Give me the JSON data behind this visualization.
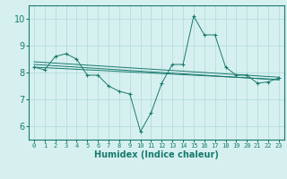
{
  "xlabel": "Humidex (Indice chaleur)",
  "ylabel": "",
  "x_values": [
    0,
    1,
    2,
    3,
    4,
    5,
    6,
    7,
    8,
    9,
    10,
    11,
    12,
    13,
    14,
    15,
    16,
    17,
    18,
    19,
    20,
    21,
    22,
    23
  ],
  "main_line": [
    8.2,
    8.1,
    8.6,
    8.7,
    8.5,
    7.9,
    7.9,
    7.5,
    7.3,
    7.2,
    5.8,
    6.5,
    7.6,
    8.3,
    8.3,
    10.1,
    9.4,
    9.4,
    8.2,
    7.9,
    7.9,
    7.6,
    7.65,
    7.8
  ],
  "regression_lines": [
    [
      8.4,
      8.375,
      8.35,
      8.325,
      8.3,
      8.275,
      8.25,
      8.225,
      8.2,
      8.175,
      8.15,
      8.125,
      8.1,
      8.075,
      8.05,
      8.025,
      8.0,
      7.975,
      7.95,
      7.925,
      7.9,
      7.875,
      7.85,
      7.825
    ],
    [
      8.3,
      8.275,
      8.25,
      8.225,
      8.2,
      8.175,
      8.15,
      8.125,
      8.1,
      8.075,
      8.05,
      8.025,
      8.0,
      7.975,
      7.95,
      7.925,
      7.9,
      7.875,
      7.85,
      7.825,
      7.8,
      7.775,
      7.75,
      7.725
    ],
    [
      8.2,
      8.18,
      8.16,
      8.14,
      8.12,
      8.1,
      8.08,
      8.06,
      8.04,
      8.02,
      8.0,
      7.98,
      7.96,
      7.94,
      7.92,
      7.9,
      7.88,
      7.86,
      7.84,
      7.82,
      7.8,
      7.78,
      7.76,
      7.74
    ]
  ],
  "line_color": "#1a7a6e",
  "bg_color": "#d6f0f0",
  "grid_color": "#b0d8d8",
  "ylim": [
    5.5,
    10.5
  ],
  "yticks": [
    6,
    7,
    8,
    9,
    10
  ],
  "xlim": [
    -0.5,
    23.5
  ],
  "xticks": [
    0,
    1,
    2,
    3,
    4,
    5,
    6,
    7,
    8,
    9,
    10,
    11,
    12,
    13,
    14,
    15,
    16,
    17,
    18,
    19,
    20,
    21,
    22,
    23
  ]
}
